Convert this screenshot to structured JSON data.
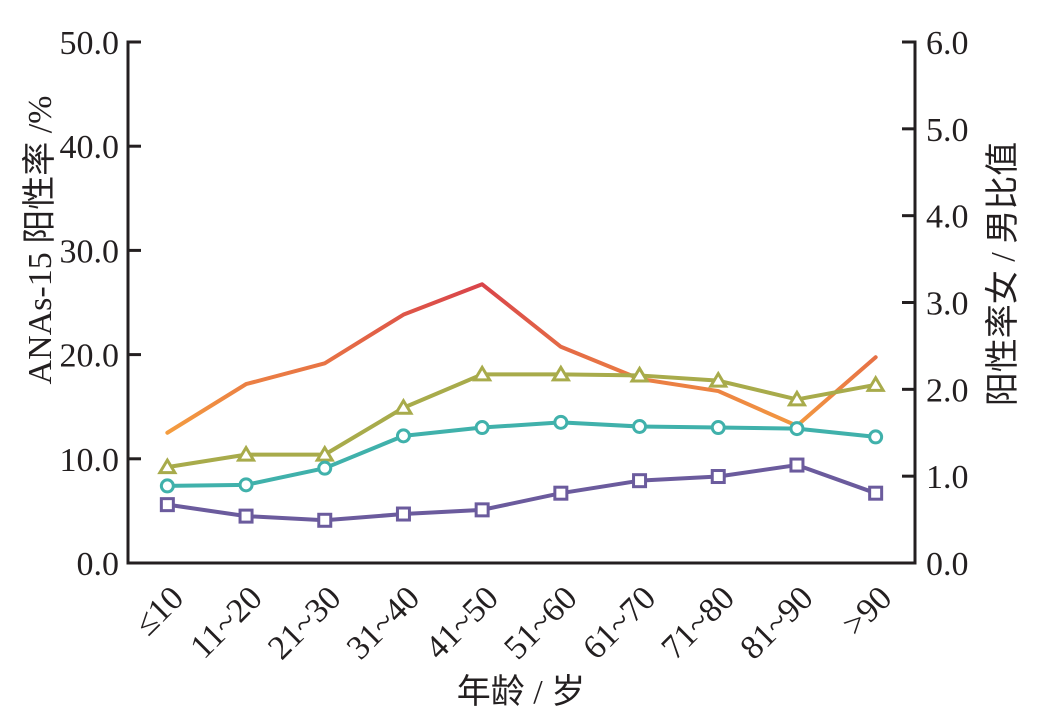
{
  "chart_data": {
    "type": "line",
    "xlabel": "年龄 / 岁",
    "categories": [
      "≤10",
      "11~20",
      "21~30",
      "31~40",
      "41~50",
      "51~60",
      "61~70",
      "71~80",
      "81~90",
      ">90"
    ],
    "y_left": {
      "label": "ANAs-15 阳性率 /%",
      "range": [
        0,
        50
      ],
      "ticks": [
        "0.0",
        "10.0",
        "20.0",
        "30.0",
        "40.0",
        "50.0"
      ]
    },
    "y_right": {
      "label": "阳性率女 / 男比值",
      "range": [
        0,
        6
      ],
      "ticks": [
        "0.0",
        "1.0",
        "2.0",
        "3.0",
        "4.0",
        "5.0",
        "6.0"
      ]
    },
    "grid": false,
    "series": [
      {
        "axis": "left",
        "marker": "triangle",
        "color": "#a8ab4b",
        "values": [
          9.2,
          10.4,
          10.4,
          14.9,
          18.1,
          18.1,
          18.0,
          17.5,
          15.7,
          17.1
        ]
      },
      {
        "axis": "left",
        "marker": "circle",
        "color": "#40b1ab",
        "values": [
          7.4,
          7.5,
          9.1,
          12.2,
          13.0,
          13.5,
          13.1,
          13.0,
          12.9,
          12.1
        ]
      },
      {
        "axis": "left",
        "marker": "square",
        "color": "#6b5b9d",
        "values": [
          5.6,
          4.5,
          4.1,
          4.7,
          5.1,
          6.7,
          7.9,
          8.3,
          9.4,
          6.7
        ]
      },
      {
        "axis": "right",
        "marker": "none",
        "gradient": [
          "#d9444a",
          "#f49d40"
        ],
        "values": [
          1.5,
          2.06,
          2.3,
          2.86,
          3.21,
          2.49,
          2.12,
          1.98,
          1.58,
          2.37
        ]
      }
    ],
    "colors": {
      "axis": "#231f20",
      "marker_fill": "#ffffff"
    }
  }
}
